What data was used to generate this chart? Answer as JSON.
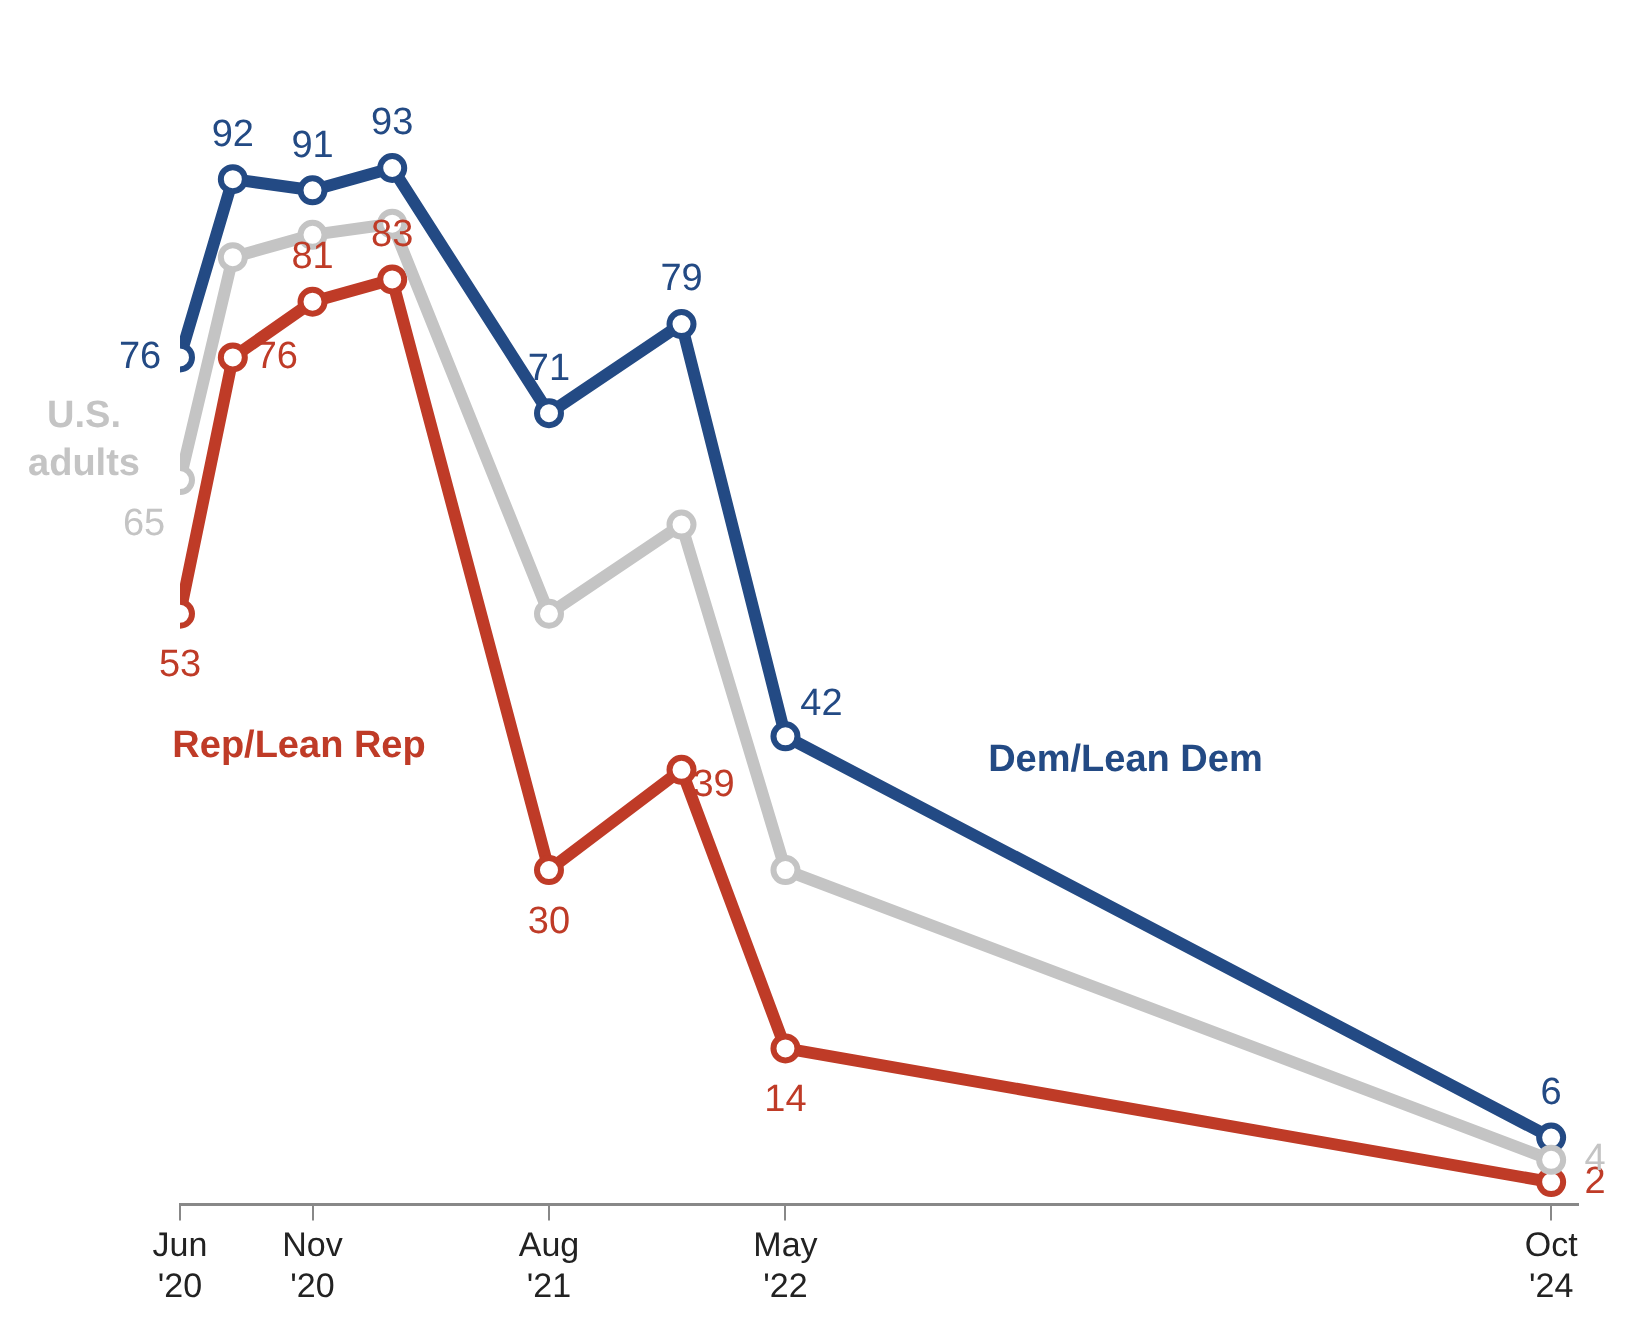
{
  "chart_data": {
    "type": "line",
    "x": [
      "2020-06",
      "2020-08",
      "2020-11",
      "2021-02",
      "2021-08",
      "2022-01",
      "2022-05",
      "2024-10"
    ],
    "series": [
      {
        "name": "Dem/Lean Dem",
        "color": "#234a84",
        "values": [
          76,
          92,
          91,
          93,
          71,
          79,
          42,
          6
        ],
        "value_labels": [
          "76",
          "92",
          "91",
          "93",
          "71",
          "79",
          "42",
          "6"
        ]
      },
      {
        "name": "Rep/Lean Rep",
        "color": "#bf3b27",
        "values": [
          53,
          76,
          81,
          83,
          30,
          39,
          14,
          2
        ],
        "value_labels": [
          "53",
          "76",
          "81",
          "83",
          "30",
          "39",
          "14",
          "2"
        ]
      },
      {
        "name": "U.S. adults",
        "color": "#c4c4c4",
        "values": [
          65,
          85,
          87,
          88,
          53,
          61,
          30,
          4
        ],
        "value_labels": [
          "65",
          null,
          null,
          null,
          null,
          null,
          null,
          "4"
        ]
      }
    ],
    "xlim": [
      "2020-06",
      "2024-11"
    ],
    "xticks": [
      {
        "value": "2020-06",
        "label": "Jun\n'20"
      },
      {
        "value": "2020-11",
        "label": "Nov\n'20"
      },
      {
        "value": "2021-08",
        "label": "Aug\n'21"
      },
      {
        "value": "2022-05",
        "label": "May\n'22"
      },
      {
        "value": "2024-10",
        "label": "Oct\n'24"
      }
    ],
    "tick_labels": "x",
    "grid": false,
    "legend": false,
    "marker": "circle",
    "line_style": "solid"
  }
}
